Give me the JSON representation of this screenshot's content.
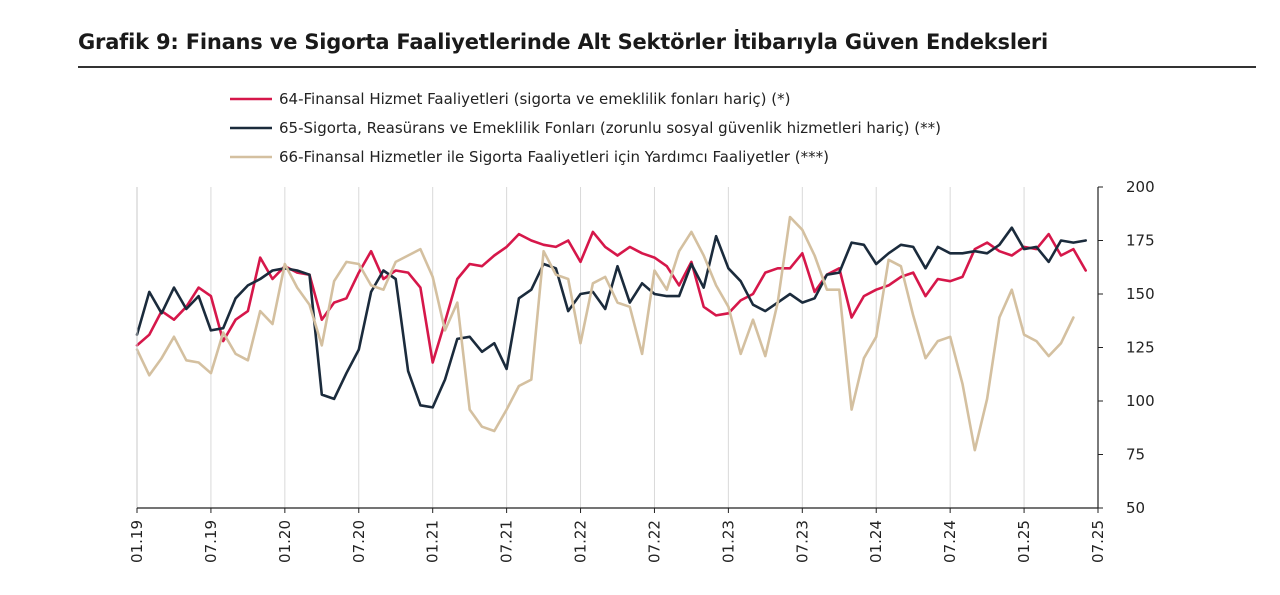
{
  "title": "Grafik 9:  Finans ve Sigorta Faaliyetlerinde Alt Sektörler İtibarıyla Güven Endeksleri",
  "chart_data": {
    "type": "line",
    "y_axis_position": "right",
    "ylim": [
      50,
      200
    ],
    "yticks": [
      50,
      75,
      100,
      125,
      150,
      175,
      200
    ],
    "x_tick_labels": [
      "01.19",
      "07.19",
      "01.20",
      "07.20",
      "01.21",
      "07.21",
      "01.22",
      "07.22",
      "01.23",
      "07.23",
      "01.24",
      "07.24",
      "01.25",
      "07.25"
    ],
    "x_tick_index": [
      0,
      6,
      12,
      18,
      24,
      30,
      36,
      42,
      48,
      54,
      60,
      66,
      72,
      78
    ],
    "grid": "vertical",
    "legend_position": "top",
    "series": [
      {
        "name": "64-Finansal Hizmet Faaliyetleri (sigorta ve emeklilik fonları hariç) (*)",
        "color": "#d6174a",
        "values": [
          126,
          131,
          142,
          138,
          144,
          153,
          149,
          128,
          138,
          142,
          167,
          157,
          163,
          160,
          159,
          138,
          146,
          148,
          160,
          170,
          157,
          161,
          160,
          153,
          118,
          137,
          157,
          164,
          163,
          168,
          172,
          178,
          175,
          173,
          172,
          175,
          165,
          179,
          172,
          168,
          172,
          169,
          167,
          163,
          154,
          165,
          144,
          140,
          141,
          147,
          150,
          160,
          162,
          162,
          169,
          151,
          159,
          162,
          139,
          149,
          152,
          154,
          158,
          160,
          149,
          157,
          156,
          158,
          171,
          174,
          170,
          168,
          172,
          171,
          178,
          168,
          171,
          161
        ]
      },
      {
        "name": "65-Sigorta, Reasürans ve Emeklilik Fonları (zorunlu sosyal güvenlik hizmetleri hariç) (**)",
        "color": "#1b2b3c",
        "values": [
          131,
          151,
          141,
          153,
          143,
          149,
          133,
          134,
          148,
          154,
          157,
          161,
          162,
          161,
          159,
          103,
          101,
          113,
          124,
          151,
          161,
          157,
          114,
          98,
          97,
          110,
          129,
          130,
          123,
          127,
          115,
          148,
          152,
          164,
          162,
          142,
          150,
          151,
          143,
          163,
          146,
          155,
          150,
          149,
          149,
          164,
          153,
          177,
          162,
          156,
          145,
          142,
          146,
          150,
          146,
          148,
          159,
          160,
          174,
          173,
          164,
          169,
          173,
          172,
          162,
          172,
          169,
          169,
          170,
          169,
          173,
          181,
          171,
          172,
          165,
          175,
          174,
          175
        ]
      },
      {
        "name": "66-Finansal Hizmetler ile Sigorta Faaliyetleri için Yardımcı Faaliyetler (***)",
        "color": "#d4c0a0",
        "values": [
          124,
          112,
          120,
          130,
          119,
          118,
          113,
          132,
          122,
          119,
          142,
          136,
          164,
          153,
          145,
          126,
          156,
          165,
          164,
          154,
          152,
          165,
          168,
          171,
          158,
          133,
          146,
          96,
          88,
          86,
          96,
          107,
          110,
          170,
          159,
          157,
          127,
          155,
          158,
          146,
          144,
          122,
          161,
          152,
          170,
          179,
          168,
          154,
          144,
          122,
          138,
          121,
          146,
          186,
          180,
          168,
          152,
          152,
          96,
          120,
          130,
          166,
          163,
          140,
          120,
          128,
          130,
          108,
          77,
          101,
          139,
          152,
          131,
          128,
          121,
          127,
          139
        ]
      }
    ]
  }
}
